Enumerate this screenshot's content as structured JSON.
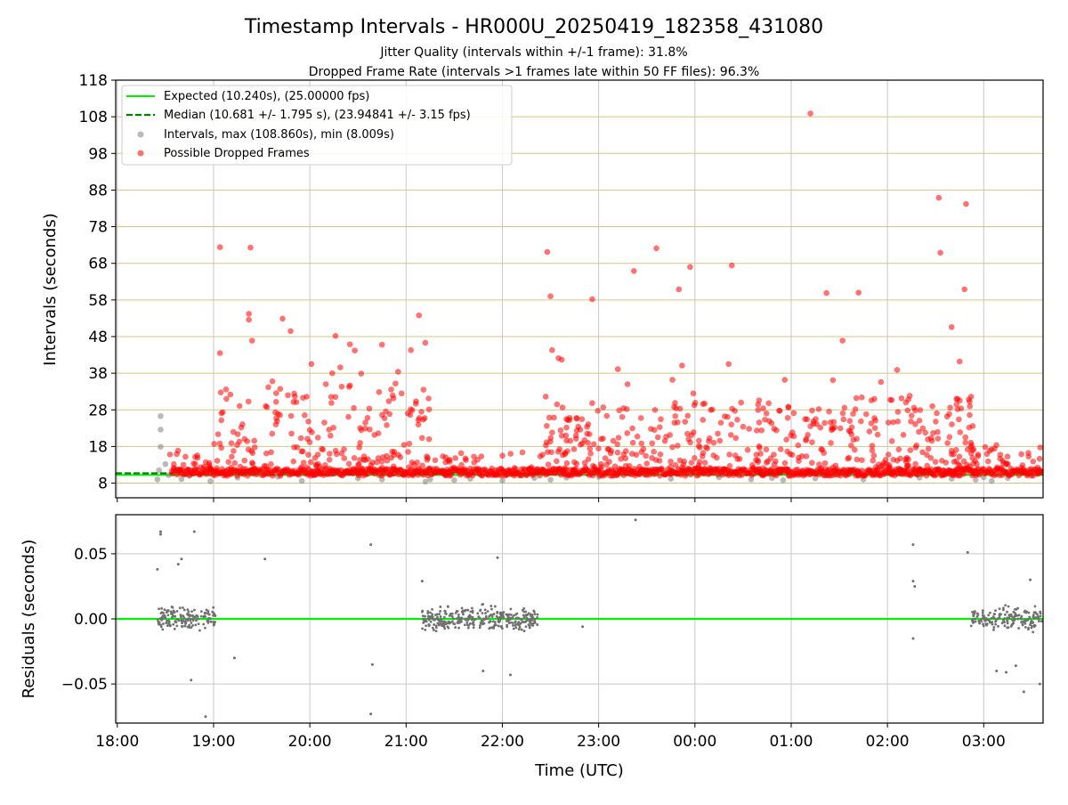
{
  "title": "Timestamp Intervals - HR000U_20250419_182358_431080",
  "subtitle_lines": [
    "Jitter Quality (intervals within +/-1 frame): 31.8%",
    "Dropped Frame Rate (intervals >1 frames late within 50 FF files): 96.3%"
  ],
  "colors": {
    "expected": "#00ee00",
    "median": "#008000",
    "intervals": "#808080",
    "dropped": "#ff0000",
    "residuals": "#707070",
    "hgrid_top": "#d4c48a",
    "grid": "#c8c8c8"
  },
  "chart_data": [
    {
      "type": "scatter",
      "panel": "intervals",
      "ylabel": "Intervals (seconds)",
      "ylim": [
        4,
        118
      ],
      "yticks": [
        8,
        18,
        28,
        38,
        48,
        58,
        68,
        78,
        88,
        98,
        108,
        118
      ],
      "ytick_labels": [
        "8",
        "18",
        "28",
        "38",
        "48",
        "58",
        "68",
        "78",
        "88",
        "98",
        "108",
        "118"
      ],
      "x_axis_type": "time",
      "xlim": [
        "17:59",
        "03:37"
      ],
      "grid": "on",
      "legend_position": "top-left",
      "legend": [
        {
          "key": "expected",
          "label": "Expected (10.240s), (25.00000 fps)"
        },
        {
          "key": "median",
          "label": "Median (10.681 +/- 1.795 s), (23.94841 +/- 3.15 fps)"
        },
        {
          "key": "intervals",
          "label": "Intervals, max (108.860s), min (8.009s)"
        },
        {
          "key": "dropped",
          "label": "Possible Dropped Frames"
        }
      ],
      "expected_value": 10.24,
      "median_value": 10.681,
      "median_segments": [
        [
          "17:59",
          "18:35"
        ],
        [
          "21:05",
          "21:30"
        ],
        [
          "22:05",
          "22:25"
        ],
        [
          "00:40",
          "01:10"
        ]
      ],
      "interval_points": [
        [
          "18:25",
          9.0
        ],
        [
          "18:26",
          11.5
        ],
        [
          "18:27",
          17.9
        ],
        [
          "18:27",
          22.6
        ],
        [
          "18:27",
          26.3
        ],
        [
          "18:30",
          13.2
        ],
        [
          "18:32",
          10.2
        ],
        [
          "18:40",
          9.1
        ],
        [
          "18:45",
          10.0
        ],
        [
          "18:58",
          8.5
        ],
        [
          "19:15",
          9.5
        ],
        [
          "19:40",
          9.8
        ],
        [
          "19:55",
          8.6
        ],
        [
          "20:30",
          9.3
        ],
        [
          "20:45",
          9.0
        ],
        [
          "21:12",
          8.4
        ],
        [
          "21:15",
          9.0
        ],
        [
          "21:25",
          10.1
        ],
        [
          "21:30",
          8.8
        ],
        [
          "21:40",
          9.2
        ],
        [
          "22:00",
          8.7
        ],
        [
          "22:20",
          9.4
        ],
        [
          "22:30",
          8.9
        ],
        [
          "22:40",
          9.5
        ],
        [
          "23:00",
          9.7
        ],
        [
          "23:45",
          9.2
        ],
        [
          "00:15",
          9.6
        ],
        [
          "00:35",
          9.0
        ],
        [
          "00:48",
          9.4
        ],
        [
          "00:55",
          8.8
        ],
        [
          "01:15",
          9.3
        ],
        [
          "01:45",
          9.0
        ],
        [
          "02:20",
          9.5
        ],
        [
          "02:40",
          9.2
        ],
        [
          "02:55",
          8.9
        ],
        [
          "03:00",
          9.6
        ],
        [
          "03:05",
          8.6
        ],
        [
          "03:15",
          9.4
        ]
      ],
      "dropped_points": [
        [
          "19:04",
          72.4
        ],
        [
          "19:23",
          72.3
        ],
        [
          "19:04",
          43.5
        ],
        [
          "19:08",
          31.0
        ],
        [
          "19:22",
          52.6
        ],
        [
          "19:22",
          54.2
        ],
        [
          "19:24",
          46.9
        ],
        [
          "19:43",
          52.9
        ],
        [
          "19:48",
          49.5
        ],
        [
          "19:58",
          31.6
        ],
        [
          "20:01",
          40.5
        ],
        [
          "20:10",
          35.0
        ],
        [
          "20:14",
          38.0
        ],
        [
          "20:16",
          48.2
        ],
        [
          "20:19",
          39.6
        ],
        [
          "20:25",
          45.9
        ],
        [
          "20:28",
          44.2
        ],
        [
          "20:32",
          37.9
        ],
        [
          "20:45",
          45.8
        ],
        [
          "20:55",
          38.4
        ],
        [
          "21:03",
          44.3
        ],
        [
          "21:08",
          53.8
        ],
        [
          "21:12",
          46.3
        ],
        [
          "21:14",
          31.1
        ],
        [
          "22:28",
          71.1
        ],
        [
          "22:30",
          59.0
        ],
        [
          "22:31",
          44.3
        ],
        [
          "22:35",
          42.1
        ],
        [
          "22:37",
          41.7
        ],
        [
          "22:56",
          58.2
        ],
        [
          "22:27",
          31.6
        ],
        [
          "23:12",
          39.1
        ],
        [
          "23:22",
          65.9
        ],
        [
          "23:36",
          72.1
        ],
        [
          "23:50",
          60.9
        ],
        [
          "23:57",
          67.0
        ],
        [
          "23:52",
          40.1
        ],
        [
          "00:21",
          40.5
        ],
        [
          "00:23",
          67.4
        ],
        [
          "01:12",
          108.9
        ],
        [
          "01:22",
          59.9
        ],
        [
          "01:32",
          46.9
        ],
        [
          "01:42",
          60.0
        ],
        [
          "02:32",
          85.9
        ],
        [
          "02:33",
          70.9
        ],
        [
          "02:40",
          50.6
        ],
        [
          "02:45",
          41.2
        ],
        [
          "02:48",
          60.9
        ],
        [
          "02:49",
          84.2
        ],
        [
          "02:06",
          38.9
        ],
        [
          "01:56",
          35.6
        ],
        [
          "02:28",
          29.0
        ],
        [
          "02:43",
          31.0
        ],
        [
          "00:56",
          36.2
        ],
        [
          "01:26",
          36.1
        ],
        [
          "23:18",
          35.0
        ],
        [
          "23:46",
          36.2
        ],
        [
          "23:59",
          32.5
        ],
        [
          "00:40",
          30.6
        ],
        [
          "00:05",
          29.6
        ]
      ],
      "dropped_regions": [
        {
          "from": "18:32",
          "to": "19:00",
          "max": 17.5,
          "count": 24
        },
        {
          "from": "19:00",
          "to": "21:15",
          "max": 36.0,
          "count": 230
        },
        {
          "from": "21:15",
          "to": "22:25",
          "max": 16.5,
          "count": 50
        },
        {
          "from": "22:25",
          "to": "01:30",
          "max": 30.0,
          "count": 330
        },
        {
          "from": "01:30",
          "to": "02:55",
          "max": 32.0,
          "count": 180
        },
        {
          "from": "02:55",
          "to": "03:37",
          "max": 19.0,
          "count": 40
        }
      ]
    },
    {
      "type": "scatter",
      "panel": "residuals",
      "xlabel": "Time (UTC)",
      "ylabel": "Residuals (seconds)",
      "ylim": [
        -0.08,
        0.08
      ],
      "yticks": [
        -0.05,
        0.0,
        0.05
      ],
      "ytick_labels": [
        "−0.05",
        "0.00",
        "0.05"
      ],
      "xticks": [
        "18:00",
        "19:00",
        "20:00",
        "21:00",
        "22:00",
        "23:00",
        "00:00",
        "01:00",
        "02:00",
        "03:00"
      ],
      "xtick_labels": [
        "18:00",
        "19:00",
        "20:00",
        "21:00",
        "22:00",
        "23:00",
        "00:00",
        "01:00",
        "02:00",
        "03:00"
      ],
      "zero_line": 0.0,
      "grid": "on",
      "outliers": [
        [
          "18:27",
          0.067
        ],
        [
          "18:27",
          0.065
        ],
        [
          "18:48",
          0.067
        ],
        [
          "18:40",
          0.046
        ],
        [
          "18:38",
          0.042
        ],
        [
          "18:25",
          0.038
        ],
        [
          "18:55",
          -0.075
        ],
        [
          "18:46",
          -0.047
        ],
        [
          "19:13",
          -0.03
        ],
        [
          "19:32",
          0.046
        ],
        [
          "20:38",
          0.057
        ],
        [
          "20:38",
          -0.073
        ],
        [
          "20:39",
          -0.035
        ],
        [
          "21:10",
          0.029
        ],
        [
          "21:48",
          -0.04
        ],
        [
          "21:57",
          0.047
        ],
        [
          "22:05",
          -0.043
        ],
        [
          "22:50",
          -0.006
        ],
        [
          "23:23",
          0.076
        ],
        [
          "02:16",
          0.057
        ],
        [
          "02:16",
          0.029
        ],
        [
          "02:16",
          -0.015
        ],
        [
          "02:17",
          0.025
        ],
        [
          "02:50",
          0.051
        ],
        [
          "03:08",
          -0.04
        ],
        [
          "03:14",
          -0.041
        ],
        [
          "03:20",
          -0.036
        ],
        [
          "03:25",
          -0.056
        ],
        [
          "03:29",
          0.03
        ],
        [
          "03:35",
          -0.05
        ]
      ],
      "dense_regions": [
        {
          "from": "18:25",
          "to": "19:02",
          "spread": 0.013,
          "count": 150
        },
        {
          "from": "21:10",
          "to": "22:22",
          "spread": 0.013,
          "count": 330
        },
        {
          "from": "02:52",
          "to": "03:37",
          "spread": 0.013,
          "count": 170
        }
      ]
    }
  ]
}
